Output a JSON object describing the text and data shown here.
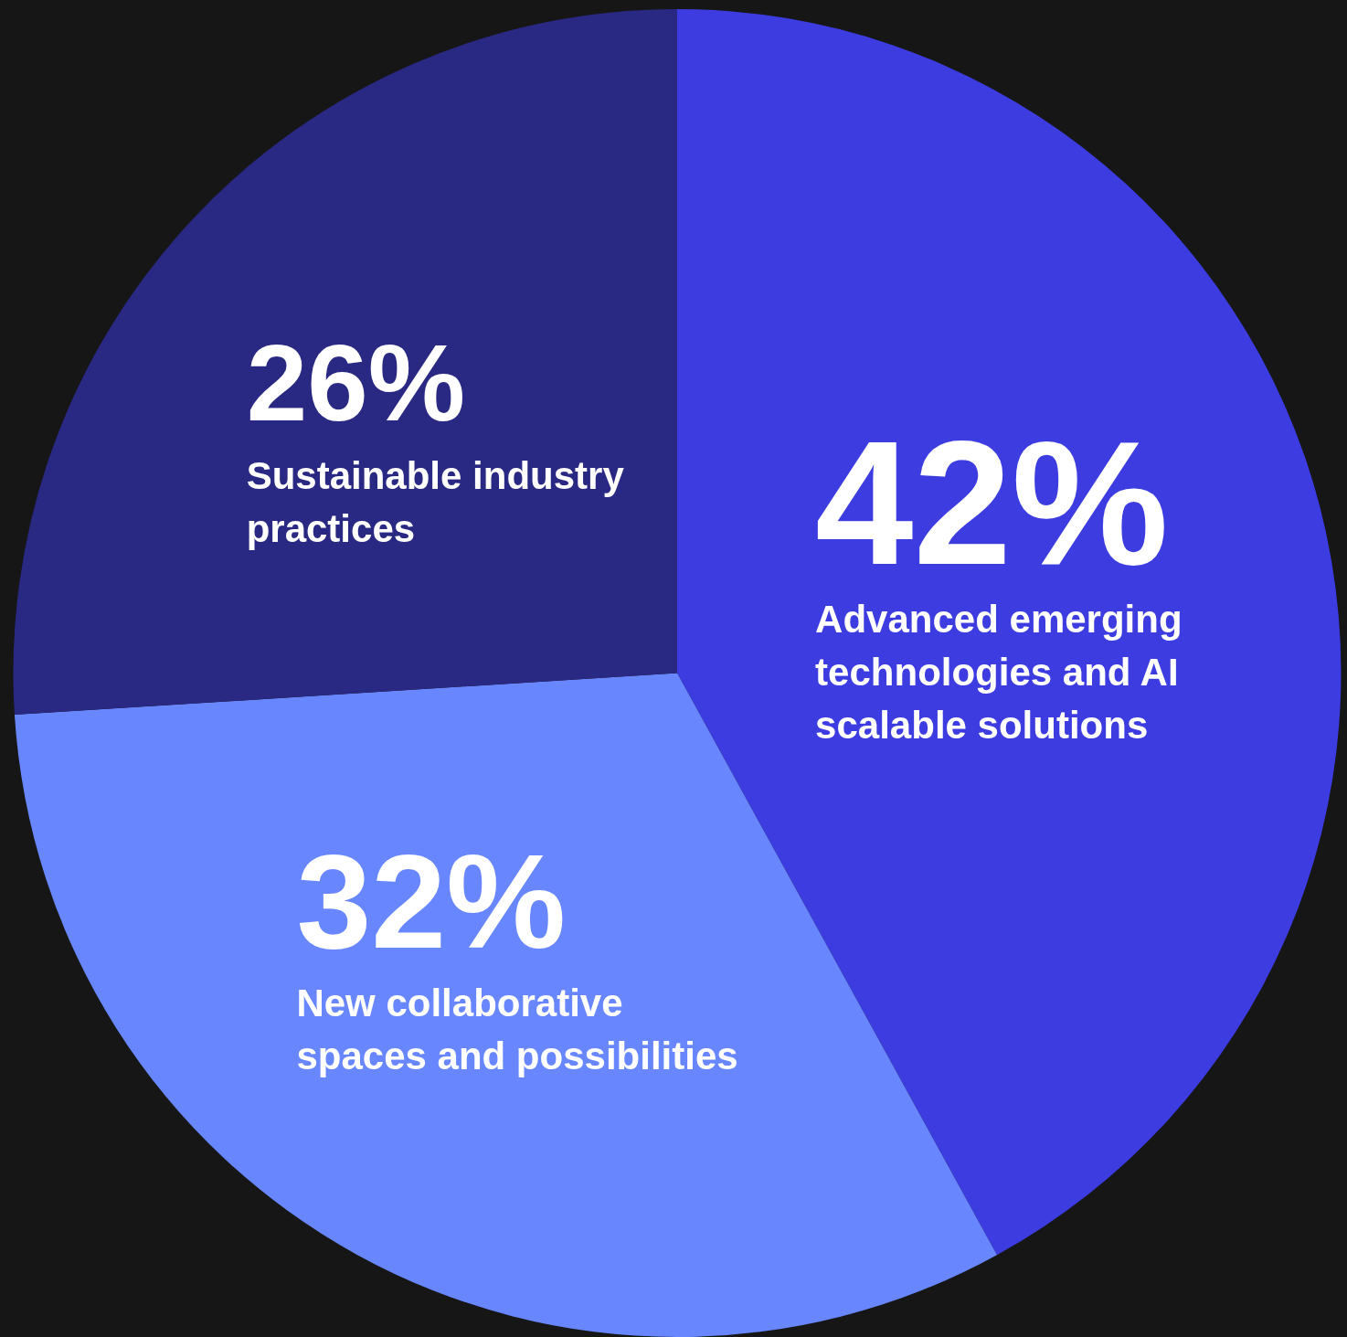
{
  "chart_data": {
    "type": "pie",
    "categories": [
      "Advanced emerging technologies and AI scalable solutions",
      "New collaborative spaces and possibilities",
      "Sustainable industry practices"
    ],
    "values": [
      42,
      32,
      26
    ],
    "colors": [
      "#3d3ce0",
      "#6887fe",
      "#292882"
    ],
    "value_labels": [
      "42%",
      "32%",
      "26%"
    ],
    "legend": false
  }
}
